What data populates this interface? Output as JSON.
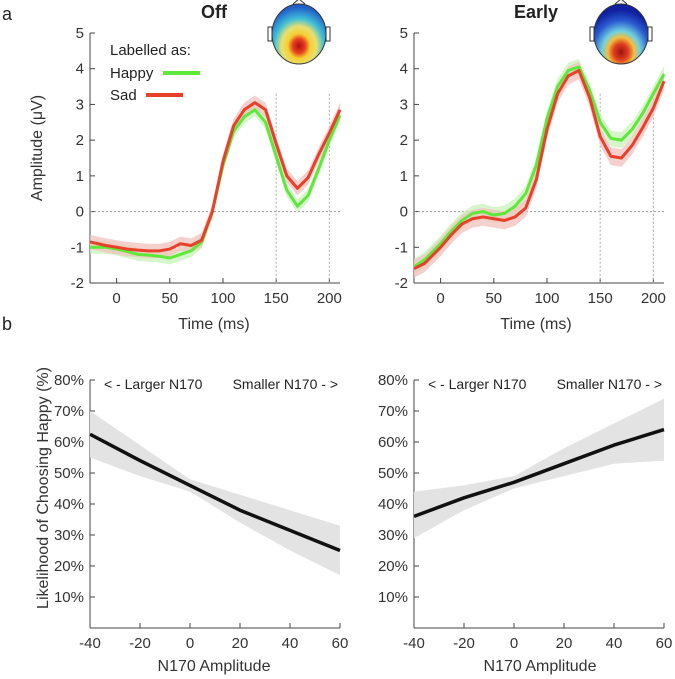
{
  "panel_labels": {
    "a": "a",
    "b": "b"
  },
  "colors": {
    "happy": "#5ee83a",
    "sad": "#e8402a",
    "happy_band": "#c9f2b8",
    "sad_band": "#f2c1bd",
    "regression": "#111111",
    "ci_band": "#e3e3e3"
  },
  "chart_data": [
    {
      "type": "line",
      "title": "Off",
      "xlabel": "Time (ms)",
      "ylabel": "Amplitude (μV)",
      "xlim": [
        -25,
        210
      ],
      "ylim": [
        -2,
        5
      ],
      "xticks": [
        0,
        50,
        100,
        150,
        200
      ],
      "yticks": [
        5,
        4,
        3,
        2,
        1,
        0,
        -1,
        -2
      ],
      "vlines": [
        150,
        200
      ],
      "legend": {
        "title": "Labelled as:",
        "position": "top-left"
      },
      "series": [
        {
          "name": "Happy",
          "color": "#5ee83a",
          "band_color": "#c9f2b8",
          "band": 0.18,
          "x": [
            -25,
            -10,
            0,
            10,
            20,
            30,
            40,
            50,
            60,
            70,
            80,
            90,
            100,
            110,
            120,
            130,
            140,
            150,
            160,
            170,
            180,
            190,
            200,
            210
          ],
          "y": [
            -1.0,
            -1.0,
            -1.05,
            -1.12,
            -1.2,
            -1.22,
            -1.25,
            -1.3,
            -1.2,
            -1.1,
            -0.85,
            0.0,
            1.3,
            2.25,
            2.65,
            2.85,
            2.5,
            1.55,
            0.6,
            0.15,
            0.45,
            1.2,
            2.0,
            2.7
          ]
        },
        {
          "name": "Sad",
          "color": "#e8402a",
          "band_color": "#f2c1bd",
          "band": 0.2,
          "x": [
            -25,
            -10,
            0,
            10,
            20,
            30,
            40,
            50,
            60,
            70,
            80,
            90,
            100,
            110,
            120,
            130,
            140,
            150,
            160,
            170,
            180,
            190,
            200,
            210
          ],
          "y": [
            -0.85,
            -0.95,
            -1.0,
            -1.05,
            -1.08,
            -1.1,
            -1.1,
            -1.05,
            -0.9,
            -0.95,
            -0.8,
            0.0,
            1.4,
            2.4,
            2.85,
            3.05,
            2.85,
            1.9,
            1.0,
            0.65,
            0.95,
            1.6,
            2.2,
            2.85
          ]
        }
      ]
    },
    {
      "type": "line",
      "title": "Early",
      "xlabel": "Time (ms)",
      "ylabel": "",
      "xlim": [
        -25,
        210
      ],
      "ylim": [
        -2,
        5
      ],
      "xticks": [
        0,
        50,
        100,
        150,
        200
      ],
      "yticks": [
        5,
        4,
        3,
        2,
        1,
        0,
        -1,
        -2
      ],
      "vlines": [
        150,
        200
      ],
      "series": [
        {
          "name": "Happy",
          "color": "#5ee83a",
          "band_color": "#c9f2b8",
          "band": 0.22,
          "x": [
            -25,
            -15,
            0,
            10,
            20,
            30,
            40,
            50,
            60,
            70,
            80,
            90,
            100,
            110,
            120,
            130,
            140,
            150,
            160,
            170,
            180,
            190,
            200,
            210
          ],
          "y": [
            -1.55,
            -1.35,
            -0.9,
            -0.55,
            -0.25,
            -0.05,
            0.0,
            -0.1,
            -0.05,
            0.15,
            0.5,
            1.3,
            2.6,
            3.5,
            3.95,
            4.05,
            3.4,
            2.5,
            2.05,
            2.0,
            2.3,
            2.75,
            3.3,
            3.85
          ]
        },
        {
          "name": "Sad",
          "color": "#e8402a",
          "band_color": "#f2c1bd",
          "band": 0.25,
          "x": [
            -25,
            -15,
            0,
            10,
            20,
            30,
            40,
            50,
            60,
            70,
            80,
            90,
            100,
            110,
            120,
            130,
            140,
            150,
            160,
            170,
            180,
            190,
            200,
            210
          ],
          "y": [
            -1.6,
            -1.45,
            -1.0,
            -0.65,
            -0.35,
            -0.2,
            -0.15,
            -0.2,
            -0.25,
            -0.15,
            0.1,
            0.9,
            2.3,
            3.3,
            3.8,
            3.95,
            3.2,
            2.1,
            1.55,
            1.5,
            1.85,
            2.35,
            2.9,
            3.65
          ]
        }
      ]
    },
    {
      "type": "line",
      "title": "",
      "xlabel": "N170 Amplitude",
      "ylabel": "Likelihood of Choosing Happy (%)",
      "xlim": [
        -40,
        60
      ],
      "ylim": [
        0,
        80
      ],
      "xticks": [
        -40,
        -20,
        0,
        20,
        40,
        60
      ],
      "yticks": [
        80,
        70,
        60,
        50,
        40,
        30,
        20,
        10
      ],
      "annotations": [
        "< -  Larger N170",
        "Smaller N170  - >"
      ],
      "series": [
        {
          "name": "fit",
          "color": "#111111",
          "x": [
            -40,
            -20,
            0,
            20,
            40,
            60
          ],
          "y": [
            62.5,
            54,
            46,
            38,
            31.5,
            25
          ],
          "ci_lower": [
            55,
            49,
            44,
            34,
            25,
            17
          ],
          "ci_upper": [
            70,
            59,
            48,
            43,
            38,
            33
          ]
        }
      ]
    },
    {
      "type": "line",
      "title": "",
      "xlabel": "N170 Amplitude",
      "ylabel": "",
      "xlim": [
        -40,
        60
      ],
      "ylim": [
        0,
        80
      ],
      "xticks": [
        -40,
        -20,
        0,
        20,
        40,
        60
      ],
      "yticks": [
        80,
        70,
        60,
        50,
        40,
        30,
        20,
        10
      ],
      "annotations": [
        "< -  Larger N170",
        "Smaller N170  - >"
      ],
      "series": [
        {
          "name": "fit",
          "color": "#111111",
          "x": [
            -40,
            -20,
            0,
            20,
            40,
            60
          ],
          "y": [
            36,
            42,
            47,
            53,
            59,
            64
          ],
          "ci_lower": [
            29,
            38,
            45,
            49,
            53,
            54
          ],
          "ci_upper": [
            44,
            46,
            49,
            58,
            66,
            74
          ]
        }
      ]
    }
  ]
}
